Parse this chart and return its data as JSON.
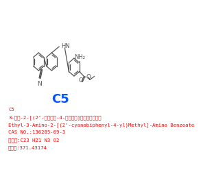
{
  "title": "C5",
  "title_color": "#0055FF",
  "title_fontsize": 13,
  "text_lines": [
    "C5",
    "3-氨基-2-[(2’-氰基联苯-4-基）甲基]氨基苯甲酸乙酸",
    "Ethyl-3-Amino-2-[(2’-cyanobiphenyl-4-yl)Methyl]-Amino Benzoate",
    "CAS NO.:136285-69-3",
    "分子式:C23 H21 N3 O2",
    "分子量:371.43174"
  ],
  "text_color": "#FF0000",
  "text_fontsize": 5.2,
  "bg_color": "#FFFFFF",
  "structure_color": "#555555"
}
